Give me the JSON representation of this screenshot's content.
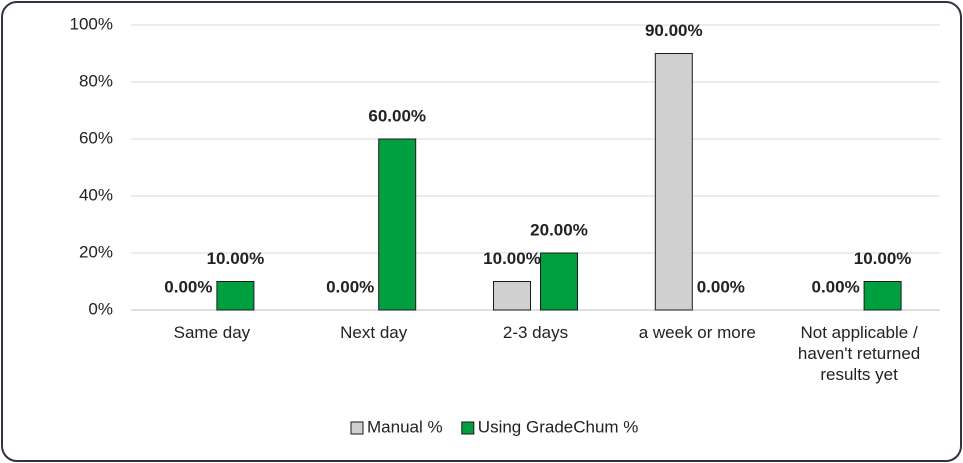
{
  "chart_data": {
    "type": "bar",
    "categories": [
      "Same day",
      "Next day",
      "2-3 days",
      "a week or more",
      "Not applicable / haven't returned results yet"
    ],
    "series": [
      {
        "name": "Manual %",
        "color": "#d0d0d0",
        "values": [
          0,
          0,
          10,
          90,
          0
        ],
        "value_labels": [
          "0.00%",
          "0.00%",
          "10.00%",
          "90.00%",
          "0.00%"
        ]
      },
      {
        "name": "Using GradeChum %",
        "color": "#00a040",
        "values": [
          10,
          60,
          20,
          0,
          10
        ],
        "value_labels": [
          "10.00%",
          "60.00%",
          "20.00%",
          "0.00%",
          "10.00%"
        ]
      }
    ],
    "ylim": [
      0,
      100
    ],
    "yticks": [
      {
        "value": 0,
        "label": "0%"
      },
      {
        "value": 20,
        "label": "20%"
      },
      {
        "value": 40,
        "label": "40%"
      },
      {
        "value": 60,
        "label": "60%"
      },
      {
        "value": 80,
        "label": "80%"
      },
      {
        "value": 100,
        "label": "100%"
      }
    ],
    "grid": true,
    "legend": "bottom"
  }
}
